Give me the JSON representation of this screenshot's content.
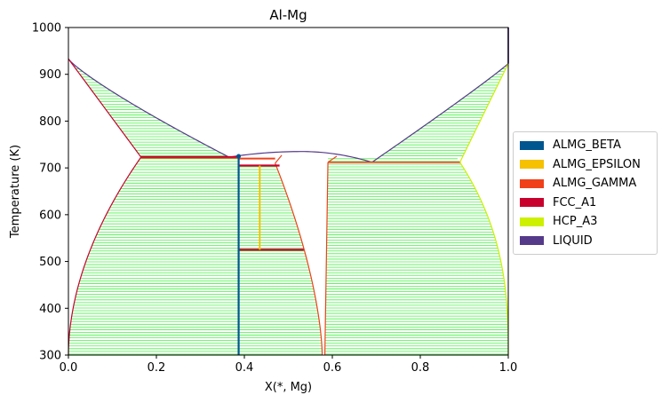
{
  "chart_data": {
    "type": "phase-diagram",
    "title": "Al-Mg",
    "xlabel": "X(*, Mg)",
    "ylabel": "Temperature (K)",
    "xlim": [
      0.0,
      1.0
    ],
    "ylim": [
      300,
      1000
    ],
    "xticks": [
      "0.0",
      "0.2",
      "0.4",
      "0.6",
      "0.8",
      "1.0"
    ],
    "yticks": [
      "300",
      "400",
      "500",
      "600",
      "700",
      "800",
      "900",
      "1000"
    ],
    "legend_position": "right",
    "series": [
      {
        "name": "ALMG_BETA",
        "color": "#00568f"
      },
      {
        "name": "ALMG_EPSILON",
        "color": "#f5c100"
      },
      {
        "name": "ALMG_GAMMA",
        "color": "#f0401a"
      },
      {
        "name": "FCC_A1",
        "color": "#c8002d"
      },
      {
        "name": "HCP_A3",
        "color": "#cdf000"
      },
      {
        "name": "LIQUID",
        "color": "#553a8a"
      }
    ],
    "tie_line_color": "#4cf04c",
    "key_points": {
      "al_melting": {
        "x": 0.0,
        "y": 933
      },
      "mg_melting": {
        "x": 1.0,
        "y": 923
      },
      "eutectic_al_side": {
        "x": 0.365,
        "y": 723
      },
      "fcc_max_solubility": {
        "x": 0.165,
        "y": 723
      },
      "gamma_liquidus_max": {
        "x": 0.53,
        "y": 735
      },
      "eutectic_mg_side": {
        "x": 0.69,
        "y": 712
      },
      "hcp_max_solubility": {
        "x": 0.89,
        "y": 712
      },
      "beta_composition": {
        "x": 0.387,
        "y": 725
      },
      "epsilon_composition": {
        "x": 0.435,
        "y": 705
      },
      "epsilon_lower_limit": {
        "x": 0.435,
        "y": 525
      }
    }
  }
}
